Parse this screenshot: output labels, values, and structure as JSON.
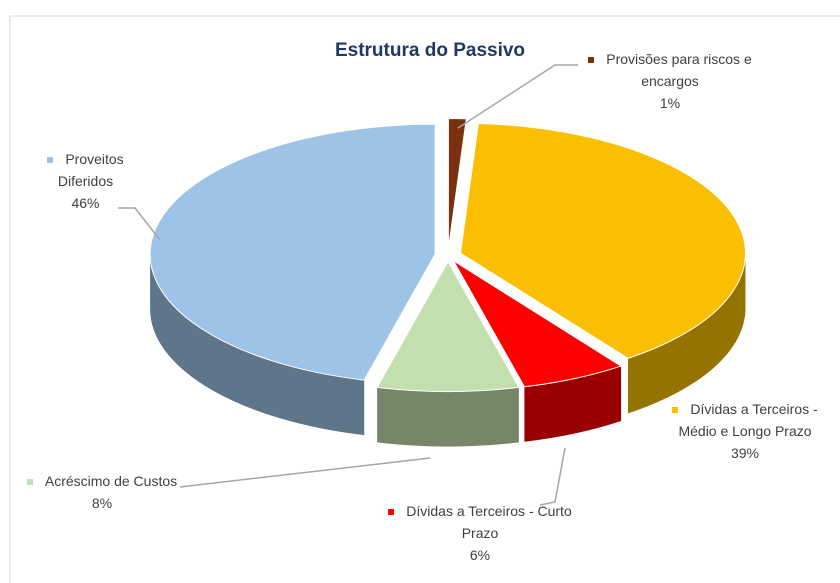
{
  "chart_data": {
    "type": "pie3d",
    "title": "Estrutura do Passivo",
    "categories": [
      "Provisões para riscos e encargos",
      "Dívidas a Terceiros - Médio e Longo Prazo",
      "Dívidas a Terceiros - Curto Prazo",
      "Acréscimo de Custos",
      "Proveitos Diferidos"
    ],
    "values": [
      1,
      39,
      6,
      8,
      46
    ],
    "value_labels": [
      "1%",
      "39%",
      "6%",
      "8%",
      "46%"
    ],
    "colors": [
      "#7b3010",
      "#f9bf00",
      "#ff0000",
      "#c4dfae",
      "#9dc3e6"
    ]
  }
}
